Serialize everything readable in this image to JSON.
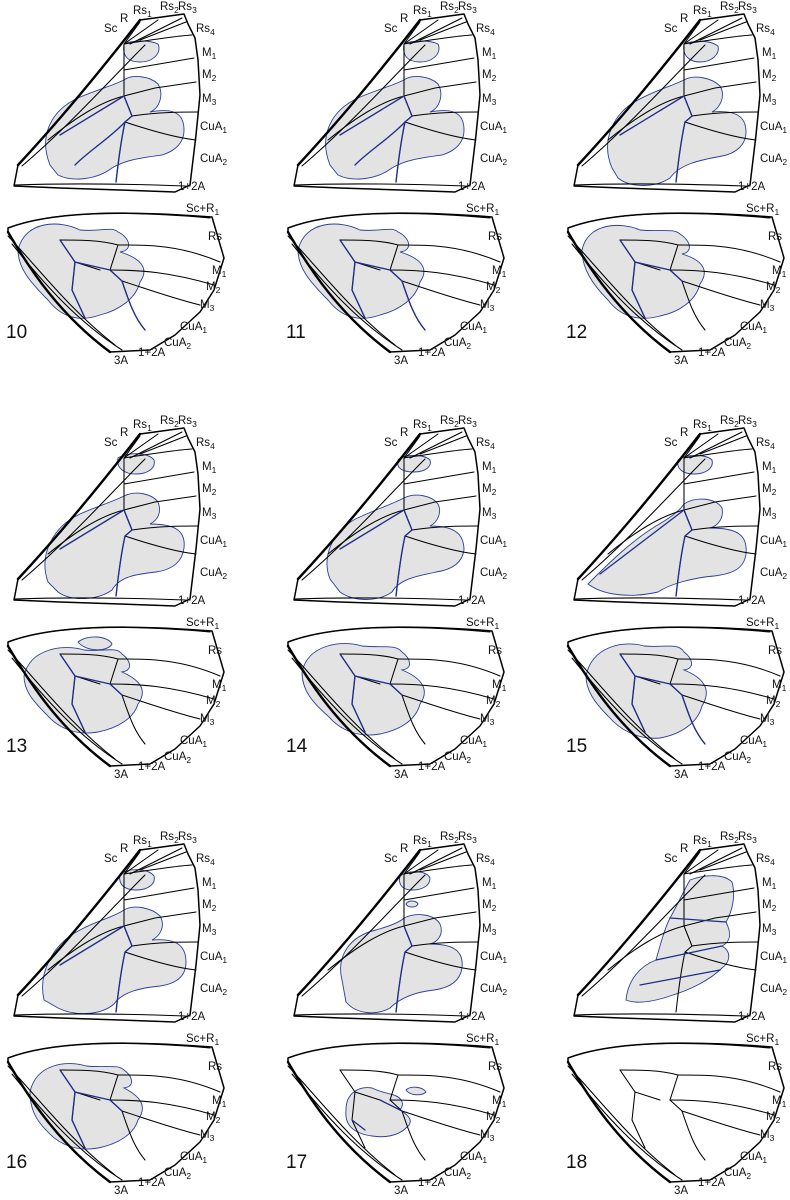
{
  "vein_labels": {
    "forewing": [
      "Sc",
      "R",
      "Rs1",
      "Rs2",
      "Rs3",
      "Rs4",
      "M1",
      "M2",
      "M3",
      "CuA1",
      "CuA2",
      "1+2A"
    ],
    "hindwing": [
      "Sc+R1",
      "Rs",
      "M1",
      "M2",
      "M3",
      "CuA1",
      "CuA2",
      "1+2A",
      "3A"
    ]
  },
  "panels": [
    {
      "number": "10",
      "pattern": "a"
    },
    {
      "number": "11",
      "pattern": "a"
    },
    {
      "number": "12",
      "pattern": "b"
    },
    {
      "number": "13",
      "pattern": "c"
    },
    {
      "number": "14",
      "pattern": "d"
    },
    {
      "number": "15",
      "pattern": "e"
    },
    {
      "number": "16",
      "pattern": "f"
    },
    {
      "number": "17",
      "pattern": "g"
    },
    {
      "number": "18",
      "pattern": "h"
    }
  ],
  "colors": {
    "pattern_fill": "#e3e3e3",
    "pattern_outline": "#2e3e9a",
    "highlighted_vein": "#1f2e8c",
    "vein": "#000000"
  }
}
